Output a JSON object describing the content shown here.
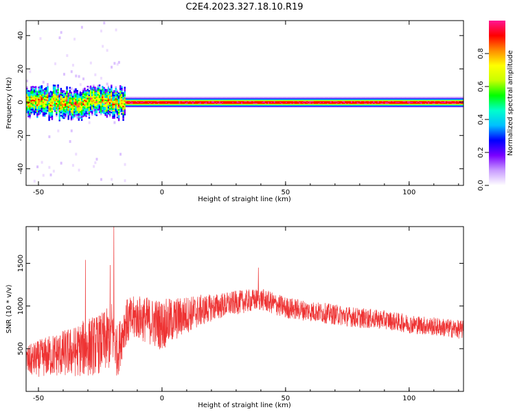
{
  "title": "C2E4.2023.327.18.10.R19",
  "chart_data": [
    {
      "type": "heatmap",
      "xlabel": "Height of straight line (km)",
      "ylabel": "Frequency (Hz)",
      "xlim": [
        -55,
        122
      ],
      "ylim": [
        -50,
        49
      ],
      "xticks": [
        -50,
        0,
        50,
        100
      ],
      "yticks": [
        -40,
        -20,
        0,
        20,
        40
      ],
      "colorbar": {
        "label": "Normalized spectral amplitude",
        "range": [
          0,
          1
        ],
        "ticks": [
          "0.0",
          "0.2",
          "0.4",
          "0.6",
          "0.8"
        ],
        "colors": [
          "#ffffff",
          "#c99cff",
          "#7a00ff",
          "#0000ff",
          "#00bfff",
          "#00ffcc",
          "#00ff00",
          "#c8ff00",
          "#ffff00",
          "#ff8c00",
          "#ff0000",
          "#ff1493"
        ]
      },
      "ridge": {
        "description": "dominant spectral line near 0 Hz",
        "x_range": [
          -55,
          122
        ],
        "freq_hz": 0,
        "noisy_region_x": [
          -55,
          -15
        ],
        "clean_region_x": [
          -15,
          122
        ]
      }
    },
    {
      "type": "line",
      "xlabel": "Height of straight line (km)",
      "ylabel": "SNR (10 * v/v)",
      "xlim": [
        -55,
        122
      ],
      "ylim": [
        0,
        1930
      ],
      "xticks": [
        -50,
        0,
        50,
        100
      ],
      "yticks": [
        500,
        1000,
        1500
      ],
      "line_color": "#ee3333",
      "envelope": {
        "x": [
          -55,
          -45,
          -35,
          -30,
          -25,
          -22,
          -20,
          -18,
          -15,
          -10,
          0,
          10,
          20,
          30,
          40,
          50,
          60,
          70,
          80,
          90,
          100,
          110,
          122
        ],
        "mean": [
          350,
          420,
          470,
          520,
          560,
          600,
          700,
          450,
          800,
          870,
          780,
          900,
          980,
          1040,
          1080,
          980,
          940,
          900,
          860,
          840,
          790,
          760,
          720
        ],
        "spread": [
          180,
          250,
          300,
          350,
          350,
          380,
          400,
          300,
          280,
          260,
          300,
          220,
          160,
          140,
          130,
          130,
          120,
          120,
          120,
          110,
          110,
          110,
          110
        ]
      },
      "peaks": [
        {
          "x": -19.5,
          "y": 1930
        },
        {
          "x": -31,
          "y": 1540
        },
        {
          "x": -21,
          "y": 1480
        },
        {
          "x": 39,
          "y": 1450
        }
      ]
    }
  ]
}
